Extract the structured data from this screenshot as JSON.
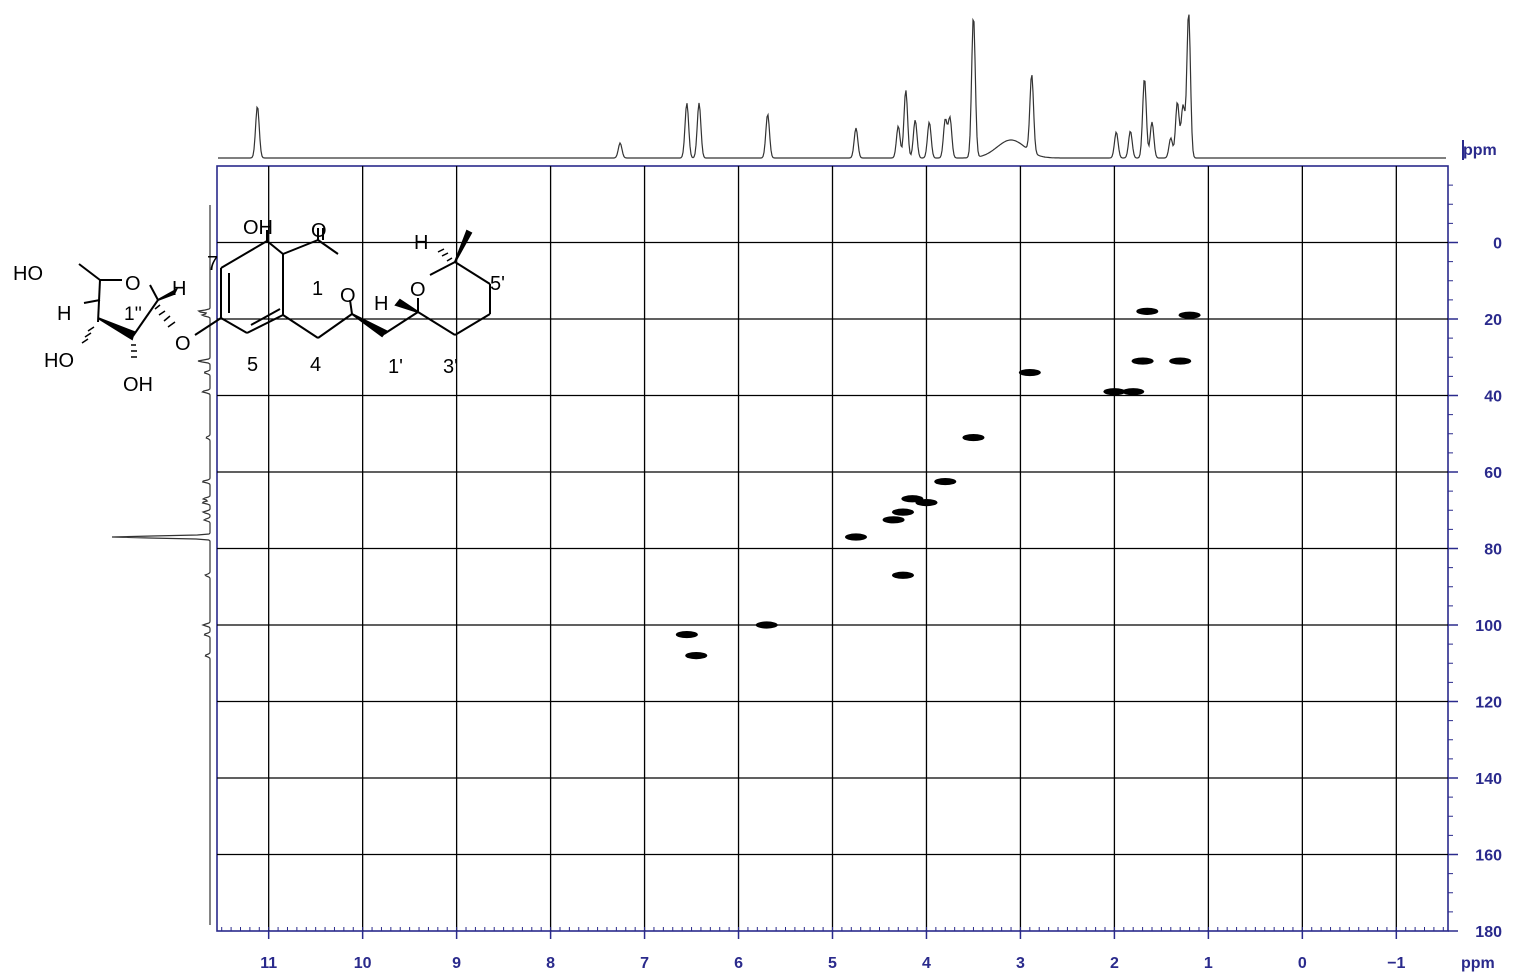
{
  "chart_data": {
    "type": "scatter",
    "title": "",
    "x_axis": {
      "label": "ppm",
      "range": [
        11.55,
        -1.55
      ],
      "tick_labels": [
        "11",
        "10",
        "9",
        "8",
        "7",
        "6",
        "5",
        "4",
        "3",
        "2",
        "1",
        "0",
        "−1"
      ],
      "tick_values": [
        11,
        10,
        9,
        8,
        7,
        6,
        5,
        4,
        3,
        2,
        1,
        0,
        -1
      ]
    },
    "y_axis": {
      "label": "ppm",
      "range": [
        -20,
        180
      ],
      "tick_labels": [
        "0",
        "20",
        "40",
        "60",
        "80",
        "100",
        "120",
        "140",
        "160",
        "180"
      ],
      "tick_values": [
        0,
        20,
        40,
        60,
        80,
        100,
        120,
        140,
        160,
        180
      ]
    },
    "grid": true,
    "series": [
      {
        "points": [
          {
            "x": 1.65,
            "y": 18.0
          },
          {
            "x": 1.2,
            "y": 19.0
          },
          {
            "x": 1.7,
            "y": 31.0
          },
          {
            "x": 1.3,
            "y": 31.0
          },
          {
            "x": 2.9,
            "y": 34.0
          },
          {
            "x": 2.0,
            "y": 39.0
          },
          {
            "x": 1.8,
            "y": 39.0
          },
          {
            "x": 3.5,
            "y": 51.0
          },
          {
            "x": 3.8,
            "y": 62.5
          },
          {
            "x": 4.15,
            "y": 67.0
          },
          {
            "x": 4.0,
            "y": 68.0
          },
          {
            "x": 4.25,
            "y": 70.5
          },
          {
            "x": 4.35,
            "y": 72.5
          },
          {
            "x": 4.75,
            "y": 77.0
          },
          {
            "x": 4.25,
            "y": 87.0
          },
          {
            "x": 5.7,
            "y": 100.0
          },
          {
            "x": 6.55,
            "y": 102.5
          },
          {
            "x": 6.45,
            "y": 108.0
          }
        ]
      }
    ],
    "projection_1h_peaks": [
      {
        "x": 11.12,
        "h": 52
      },
      {
        "x": 7.26,
        "h": 15
      },
      {
        "x": 6.55,
        "h": 55
      },
      {
        "x": 6.42,
        "h": 55
      },
      {
        "x": 5.69,
        "h": 44
      },
      {
        "x": 4.75,
        "h": 30
      },
      {
        "x": 4.3,
        "h": 32
      },
      {
        "x": 4.22,
        "h": 68
      },
      {
        "x": 4.12,
        "h": 38
      },
      {
        "x": 3.97,
        "h": 36
      },
      {
        "x": 3.8,
        "h": 38
      },
      {
        "x": 3.75,
        "h": 40
      },
      {
        "x": 3.5,
        "h": 142
      },
      {
        "x": 2.88,
        "h": 78
      },
      {
        "x": 1.98,
        "h": 26
      },
      {
        "x": 1.83,
        "h": 27
      },
      {
        "x": 1.68,
        "h": 80
      },
      {
        "x": 1.6,
        "h": 36
      },
      {
        "x": 1.4,
        "h": 20
      },
      {
        "x": 1.33,
        "h": 56
      },
      {
        "x": 1.27,
        "h": 52
      },
      {
        "x": 1.21,
        "h": 146
      }
    ],
    "projection_13c_peaks": [
      {
        "y": 18,
        "h": 12
      },
      {
        "y": 19,
        "h": 8
      },
      {
        "y": 31,
        "h": 12
      },
      {
        "y": 34,
        "h": 6
      },
      {
        "y": 39,
        "h": 8
      },
      {
        "y": 51,
        "h": 4
      },
      {
        "y": 62.5,
        "h": 8
      },
      {
        "y": 67,
        "h": 7
      },
      {
        "y": 68,
        "h": 8
      },
      {
        "y": 70.5,
        "h": 7
      },
      {
        "y": 72.5,
        "h": 6
      },
      {
        "y": 77,
        "h": 98
      },
      {
        "y": 87,
        "h": 5
      },
      {
        "y": 100,
        "h": 7
      },
      {
        "y": 102.5,
        "h": 6
      },
      {
        "y": 108,
        "h": 5
      }
    ]
  },
  "structure_labels": {
    "oh_top": "OH",
    "o_carbonyl": "O",
    "n7": "7",
    "n1": "1",
    "o_ring": "O",
    "h_pyran_top": "H",
    "o_pyran": "O",
    "n5p": "5'",
    "h_pyran_mid": "H",
    "ho_left": "HO",
    "o_furan": "O",
    "h_anomeric": "H",
    "h_left": "H",
    "n1pp": "1''",
    "o_link": "O",
    "ho_bottom": "HO",
    "oh_bottom": "OH",
    "n5": "5",
    "n4": "4",
    "n1p": "1'",
    "n3p": "3'"
  },
  "colors": {
    "axis": "#2a2a8c",
    "grid": "#000000",
    "peaks": "#000000",
    "trace": "#333333"
  }
}
